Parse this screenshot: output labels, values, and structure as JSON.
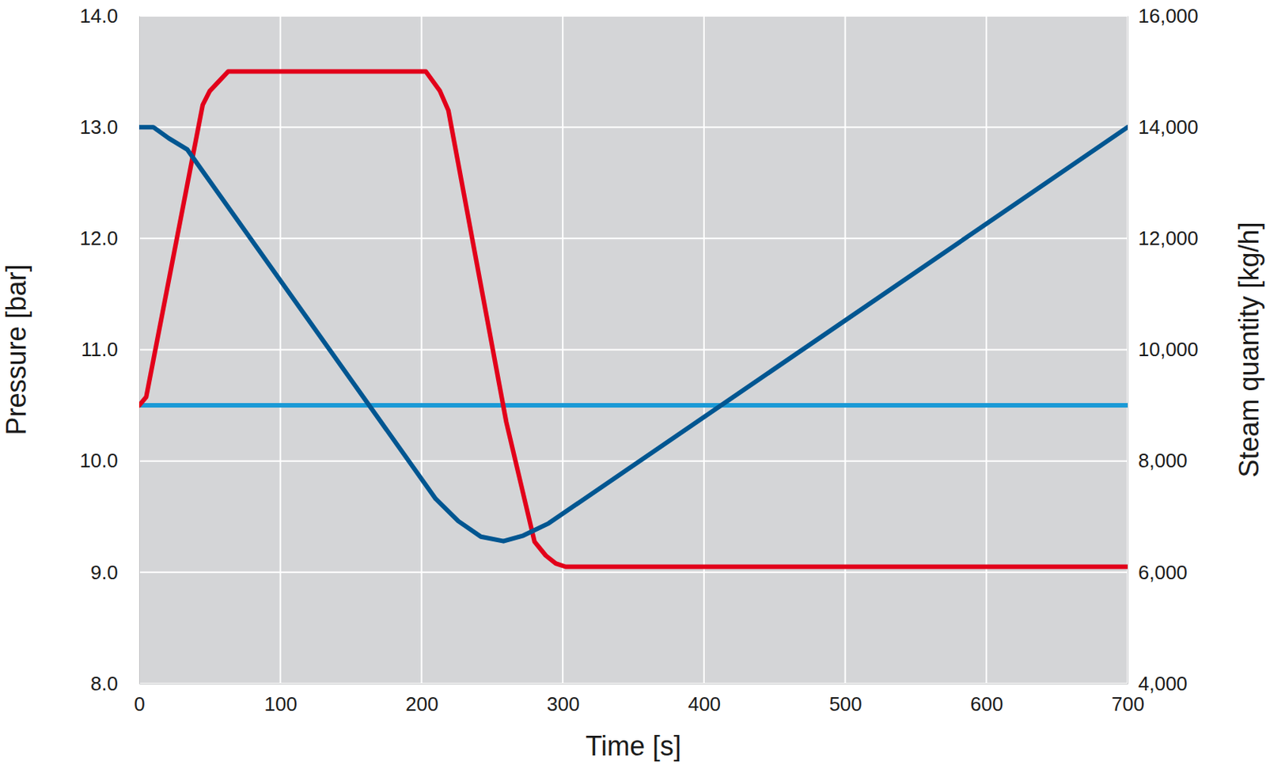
{
  "chart_data": {
    "type": "line",
    "x_label": "Time [s]",
    "y_label": "Pressure [bar]",
    "y2_label": "Steam quantity [kg/h]",
    "xlim": [
      0,
      700
    ],
    "xticks": [
      0,
      100,
      200,
      300,
      400,
      500,
      600,
      700
    ],
    "ylim": [
      8,
      14
    ],
    "yticks": [
      {
        "value": 8,
        "label": "8.0"
      },
      {
        "value": 9,
        "label": "9.0"
      },
      {
        "value": 10,
        "label": "10.0"
      },
      {
        "value": 11,
        "label": "11.0"
      },
      {
        "value": 12,
        "label": "12.0"
      },
      {
        "value": 13,
        "label": "13.0"
      },
      {
        "value": 14,
        "label": "14.0"
      }
    ],
    "y2lim": [
      4000,
      16000
    ],
    "y2ticks": [
      {
        "value": 4000,
        "label": "4,000"
      },
      {
        "value": 6000,
        "label": "6,000"
      },
      {
        "value": 8000,
        "label": "8,000"
      },
      {
        "value": 10000,
        "label": "10,000"
      },
      {
        "value": 12000,
        "label": "12,000"
      },
      {
        "value": 14000,
        "label": "14,000"
      },
      {
        "value": 16000,
        "label": "16,000"
      }
    ],
    "grid": true,
    "series": [
      {
        "color": "#1c9ad6",
        "axis": "y2",
        "x": [
          0,
          700
        ],
        "values": [
          9000,
          9000
        ]
      },
      {
        "color": "#e2001a",
        "axis": "y2",
        "x": [
          0,
          5,
          45,
          50,
          63,
          203,
          213,
          219,
          260,
          280,
          288,
          295,
          302,
          700
        ],
        "values": [
          9000,
          9150,
          14400,
          14650,
          15000,
          15000,
          14650,
          14300,
          8700,
          6550,
          6300,
          6160,
          6100,
          6100
        ]
      },
      {
        "color": "#005691",
        "axis": "y",
        "x": [
          0,
          10,
          21,
          34,
          210,
          226,
          242,
          258,
          272,
          290,
          700
        ],
        "values": [
          13.0,
          13.0,
          12.9,
          12.8,
          9.66,
          9.46,
          9.32,
          9.28,
          9.33,
          9.44,
          13.0
        ]
      }
    ]
  }
}
